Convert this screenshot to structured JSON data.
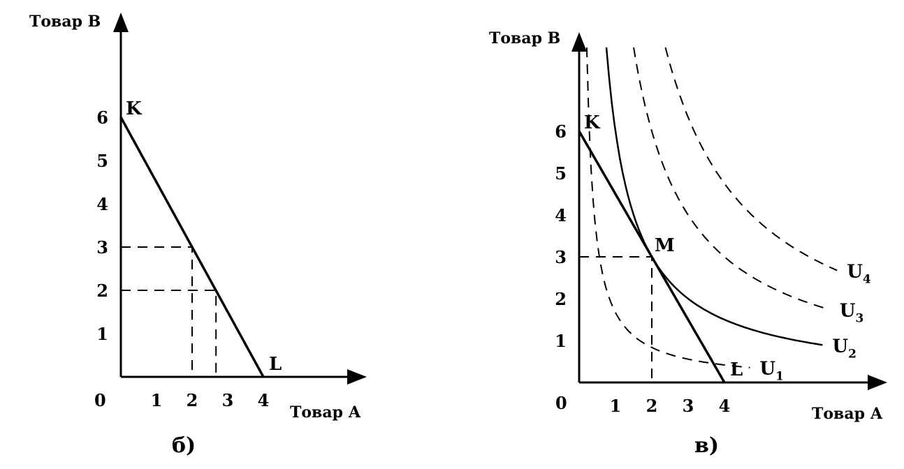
{
  "chart_data": [
    {
      "id": "b",
      "type": "line",
      "caption": "б)",
      "xlabel": "Товар А",
      "ylabel": "Товар В",
      "origin_label": "0",
      "x_ticks": [
        "1",
        "2",
        "3",
        "4"
      ],
      "y_ticks": [
        "1",
        "2",
        "3",
        "4",
        "5",
        "6"
      ],
      "xlim": [
        0,
        6.5
      ],
      "ylim": [
        0,
        8.5
      ],
      "budget_line": {
        "from": {
          "label": "K",
          "x": 0,
          "y": 6
        },
        "to": {
          "label": "L",
          "x": 4,
          "y": 0
        }
      },
      "guides": [
        {
          "x": 2,
          "y": 3
        },
        {
          "x": 2.67,
          "y": 2
        }
      ]
    },
    {
      "id": "v",
      "type": "line",
      "caption": "в)",
      "xlabel": "Товар А",
      "ylabel": "Товар В",
      "origin_label": "0",
      "x_ticks": [
        "1",
        "2",
        "3",
        "4"
      ],
      "y_ticks": [
        "1",
        "2",
        "3",
        "4",
        "5",
        "6"
      ],
      "xlim": [
        0,
        8.1
      ],
      "ylim": [
        0,
        8.5
      ],
      "budget_line": {
        "from": {
          "label": "K",
          "x": 0,
          "y": 6
        },
        "to": {
          "label": "L",
          "x": 4,
          "y": 0
        }
      },
      "tangent_point": {
        "label": "M",
        "x": 2,
        "y": 3
      },
      "indifference_curves": [
        {
          "name": "U",
          "subscript": "1",
          "style": "dashed",
          "k": 1.67
        },
        {
          "name": "U",
          "subscript": "2",
          "style": "solid",
          "k": 6
        },
        {
          "name": "U",
          "subscript": "3",
          "style": "dashed",
          "k": 12
        },
        {
          "name": "U",
          "subscript": "4",
          "style": "dashed",
          "k": 19
        }
      ]
    }
  ]
}
